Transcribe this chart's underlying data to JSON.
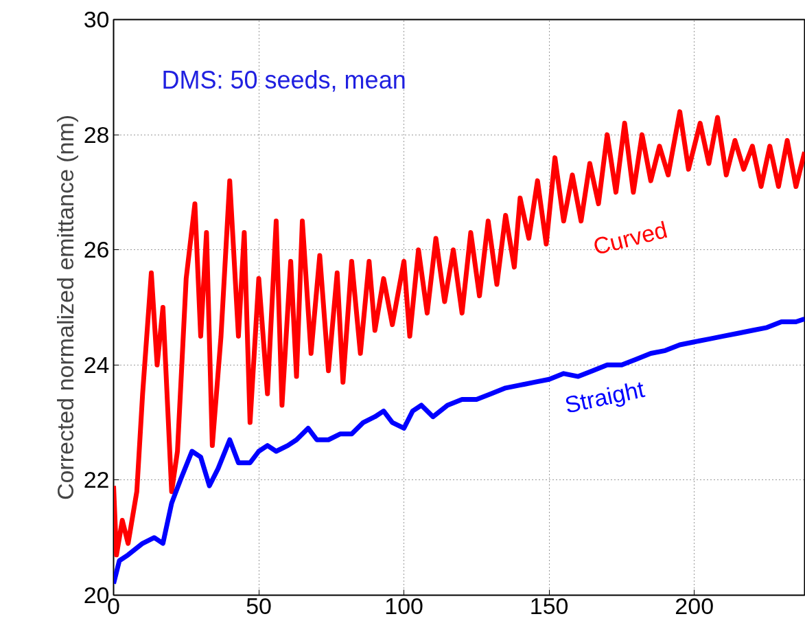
{
  "chart_data": {
    "type": "line",
    "ylabel": "Corrected normalized emittance (nm)",
    "annotations": [
      "DMS: 50 seeds, mean"
    ],
    "xlim": [
      0,
      238
    ],
    "ylim": [
      20,
      30
    ],
    "xticks": [
      0,
      50,
      100,
      150,
      200
    ],
    "yticks": [
      20,
      22,
      24,
      26,
      28,
      30
    ],
    "grid": true,
    "line_style": "solid",
    "marker": "none",
    "series": [
      {
        "name": "Curved",
        "color": "#ff0000",
        "x": [
          0,
          1,
          3,
          5,
          8,
          10,
          13,
          15,
          17,
          20,
          22,
          25,
          28,
          30,
          32,
          34,
          37,
          40,
          43,
          45,
          47,
          50,
          53,
          56,
          58,
          61,
          63,
          65,
          68,
          71,
          74,
          77,
          79,
          82,
          85,
          88,
          90,
          93,
          96,
          100,
          102,
          105,
          108,
          111,
          114,
          117,
          120,
          123,
          126,
          129,
          132,
          135,
          138,
          140,
          143,
          146,
          149,
          152,
          155,
          158,
          161,
          164,
          167,
          170,
          173,
          176,
          179,
          182,
          185,
          188,
          191,
          195,
          198,
          202,
          205,
          208,
          211,
          214,
          217,
          220,
          223,
          226,
          229,
          232,
          235,
          238
        ],
        "values": [
          21.9,
          20.7,
          21.3,
          20.9,
          21.8,
          23.5,
          25.6,
          24.0,
          25.0,
          21.8,
          22.5,
          25.5,
          26.8,
          24.5,
          26.3,
          22.6,
          24.5,
          27.2,
          24.5,
          26.3,
          23.0,
          25.5,
          23.5,
          26.5,
          23.3,
          25.8,
          23.8,
          26.5,
          24.2,
          25.9,
          23.9,
          25.6,
          23.7,
          25.8,
          24.2,
          25.8,
          24.6,
          25.5,
          24.7,
          25.8,
          24.5,
          26.0,
          24.9,
          26.2,
          25.1,
          26.0,
          24.9,
          26.3,
          25.2,
          26.5,
          25.4,
          26.6,
          25.7,
          26.9,
          26.2,
          27.2,
          26.1,
          27.6,
          26.5,
          27.3,
          26.5,
          27.5,
          26.8,
          28.0,
          27.0,
          28.2,
          27.0,
          28.0,
          27.2,
          27.8,
          27.3,
          28.4,
          27.4,
          28.2,
          27.5,
          28.3,
          27.3,
          27.9,
          27.4,
          27.8,
          27.1,
          27.8,
          27.1,
          27.9,
          27.1,
          27.7
        ]
      },
      {
        "name": "Straight",
        "color": "#0000ff",
        "x": [
          0,
          2,
          5,
          10,
          14,
          17,
          20,
          23,
          27,
          30,
          33,
          36,
          40,
          43,
          47,
          50,
          53,
          56,
          60,
          63,
          67,
          70,
          74,
          78,
          82,
          86,
          90,
          93,
          96,
          100,
          103,
          106,
          110,
          115,
          120,
          125,
          130,
          135,
          140,
          145,
          150,
          155,
          160,
          165,
          170,
          175,
          180,
          185,
          190,
          195,
          200,
          205,
          210,
          215,
          220,
          225,
          230,
          235,
          238
        ],
        "values": [
          20.2,
          20.6,
          20.7,
          20.9,
          21.0,
          20.9,
          21.6,
          22.0,
          22.5,
          22.4,
          21.9,
          22.2,
          22.7,
          22.3,
          22.3,
          22.5,
          22.6,
          22.5,
          22.6,
          22.7,
          22.9,
          22.7,
          22.7,
          22.8,
          22.8,
          23.0,
          23.1,
          23.2,
          23.0,
          22.9,
          23.2,
          23.3,
          23.1,
          23.3,
          23.4,
          23.4,
          23.5,
          23.6,
          23.65,
          23.7,
          23.75,
          23.85,
          23.8,
          23.9,
          24.0,
          24.0,
          24.1,
          24.2,
          24.25,
          24.35,
          24.4,
          24.45,
          24.5,
          24.55,
          24.6,
          24.65,
          24.75,
          24.75,
          24.8
        ]
      }
    ]
  }
}
